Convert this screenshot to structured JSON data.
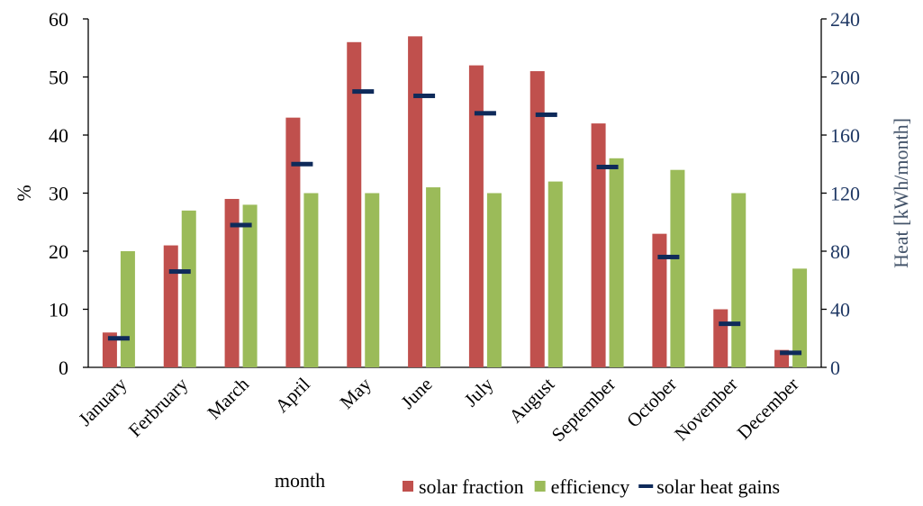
{
  "chart_data": {
    "type": "bar",
    "title": "",
    "xlabel": "month",
    "ylabel": "%",
    "y2label": "Heat [kWh/month]",
    "categories": [
      "January",
      "Ferbruary",
      "March",
      "April",
      "May",
      "June",
      "July",
      "August",
      "September",
      "October",
      "November",
      "December"
    ],
    "ylim": [
      0,
      60
    ],
    "y2lim": [
      0,
      240
    ],
    "yticks": [
      0,
      10,
      20,
      30,
      40,
      50,
      60
    ],
    "y2ticks": [
      0,
      40,
      80,
      120,
      160,
      200,
      240
    ],
    "grid": false,
    "legend_position": "bottom-right",
    "series": [
      {
        "name": "solar fraction",
        "kind": "bar",
        "axis": "left",
        "color": "#C0504D",
        "values": [
          6,
          21,
          29,
          43,
          56,
          57,
          52,
          51,
          42,
          23,
          10,
          3
        ]
      },
      {
        "name": "efficiency",
        "kind": "bar",
        "axis": "left",
        "color": "#9BBB59",
        "values": [
          20,
          27,
          28,
          30,
          30,
          31,
          30,
          32,
          36,
          34,
          30,
          17
        ]
      },
      {
        "name": "solar heat gains",
        "kind": "marker",
        "axis": "right",
        "color": "#0F2A5A",
        "values": [
          20,
          66,
          98,
          140,
          190,
          187,
          175,
          174,
          138,
          76,
          30,
          10
        ]
      }
    ]
  }
}
